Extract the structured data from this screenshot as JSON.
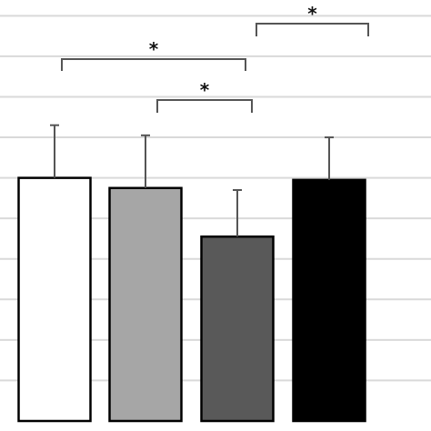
{
  "chart_data": {
    "type": "bar",
    "title": "",
    "xlabel": "",
    "ylabel": "",
    "ylim": [
      0,
      10.3
    ],
    "grid": true,
    "grid_step": 1,
    "categories": [
      "",
      "",
      "",
      ""
    ],
    "values": [
      6,
      5.75,
      4.55,
      5.95
    ],
    "errors": [
      1.3,
      1.3,
      1.15,
      1.05
    ],
    "bar_colors": [
      "#ffffff",
      "#a6a6a6",
      "#595959",
      "#000000"
    ],
    "significance": [
      {
        "from": 0,
        "to": 2,
        "label": "*"
      },
      {
        "from": 1,
        "to": 2,
        "label": "*"
      },
      {
        "from": 2,
        "to": 3,
        "label": "*"
      }
    ]
  }
}
